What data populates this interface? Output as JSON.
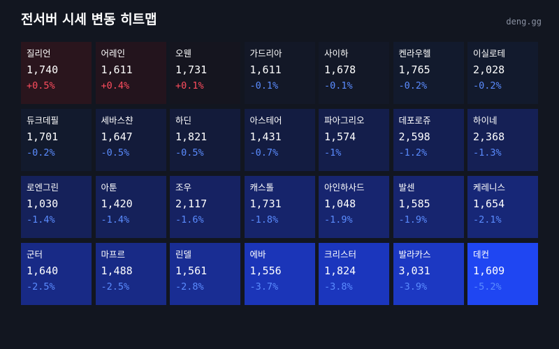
{
  "header": {
    "title": "전서버 시세 변동 히트맵",
    "source": "deng.gg"
  },
  "colors": {
    "background": "#121620",
    "up_text": "#ff4d5e",
    "down_text": "#5b8cff"
  },
  "cells": [
    {
      "name": "질리언",
      "price": "1,740",
      "change": "+0.5%",
      "direction": "up",
      "bg": "#2a151d"
    },
    {
      "name": "어레인",
      "price": "1,611",
      "change": "+0.4%",
      "direction": "up",
      "bg": "#23141d"
    },
    {
      "name": "오웬",
      "price": "1,731",
      "change": "+0.1%",
      "direction": "up",
      "bg": "#15151f"
    },
    {
      "name": "가드리아",
      "price": "1,611",
      "change": "-0.1%",
      "direction": "down",
      "bg": "#131827"
    },
    {
      "name": "사이하",
      "price": "1,678",
      "change": "-0.1%",
      "direction": "down",
      "bg": "#131827"
    },
    {
      "name": "켄라우헬",
      "price": "1,765",
      "change": "-0.2%",
      "direction": "down",
      "bg": "#121a2d"
    },
    {
      "name": "이실로테",
      "price": "2,028",
      "change": "-0.2%",
      "direction": "down",
      "bg": "#121a2d"
    },
    {
      "name": "듀크데필",
      "price": "1,701",
      "change": "-0.2%",
      "direction": "down",
      "bg": "#121a2d"
    },
    {
      "name": "세바스챤",
      "price": "1,647",
      "change": "-0.5%",
      "direction": "down",
      "bg": "#131b3a"
    },
    {
      "name": "하딘",
      "price": "1,821",
      "change": "-0.5%",
      "direction": "down",
      "bg": "#131b3a"
    },
    {
      "name": "아스테어",
      "price": "1,431",
      "change": "-0.7%",
      "direction": "down",
      "bg": "#131c41"
    },
    {
      "name": "파아그리오",
      "price": "1,574",
      "change": "-1%",
      "direction": "down",
      "bg": "#141e4b"
    },
    {
      "name": "데포로쥬",
      "price": "2,598",
      "change": "-1.2%",
      "direction": "down",
      "bg": "#141f52"
    },
    {
      "name": "하이네",
      "price": "2,368",
      "change": "-1.3%",
      "direction": "down",
      "bg": "#152055"
    },
    {
      "name": "로엔그린",
      "price": "1,030",
      "change": "-1.4%",
      "direction": "down",
      "bg": "#15215a"
    },
    {
      "name": "아툰",
      "price": "1,420",
      "change": "-1.4%",
      "direction": "down",
      "bg": "#15215a"
    },
    {
      "name": "조우",
      "price": "2,117",
      "change": "-1.6%",
      "direction": "down",
      "bg": "#162262"
    },
    {
      "name": "캐스톨",
      "price": "1,731",
      "change": "-1.8%",
      "direction": "down",
      "bg": "#16246b"
    },
    {
      "name": "아인하사드",
      "price": "1,048",
      "change": "-1.9%",
      "direction": "down",
      "bg": "#17256f"
    },
    {
      "name": "발센",
      "price": "1,585",
      "change": "-1.9%",
      "direction": "down",
      "bg": "#17256f"
    },
    {
      "name": "케레니스",
      "price": "1,654",
      "change": "-2.1%",
      "direction": "down",
      "bg": "#172777"
    },
    {
      "name": "군터",
      "price": "1,640",
      "change": "-2.5%",
      "direction": "down",
      "bg": "#182a86"
    },
    {
      "name": "마프르",
      "price": "1,488",
      "change": "-2.5%",
      "direction": "down",
      "bg": "#182a86"
    },
    {
      "name": "린델",
      "price": "1,561",
      "change": "-2.8%",
      "direction": "down",
      "bg": "#192d93"
    },
    {
      "name": "에바",
      "price": "1,556",
      "change": "-3.7%",
      "direction": "down",
      "bg": "#1b35b8"
    },
    {
      "name": "크리스터",
      "price": "1,824",
      "change": "-3.8%",
      "direction": "down",
      "bg": "#1b36bd"
    },
    {
      "name": "발라카스",
      "price": "3,031",
      "change": "-3.9%",
      "direction": "down",
      "bg": "#1c38c2"
    },
    {
      "name": "데컨",
      "price": "1,609",
      "change": "-5.2%",
      "direction": "down",
      "bg": "#1f46f2"
    }
  ]
}
